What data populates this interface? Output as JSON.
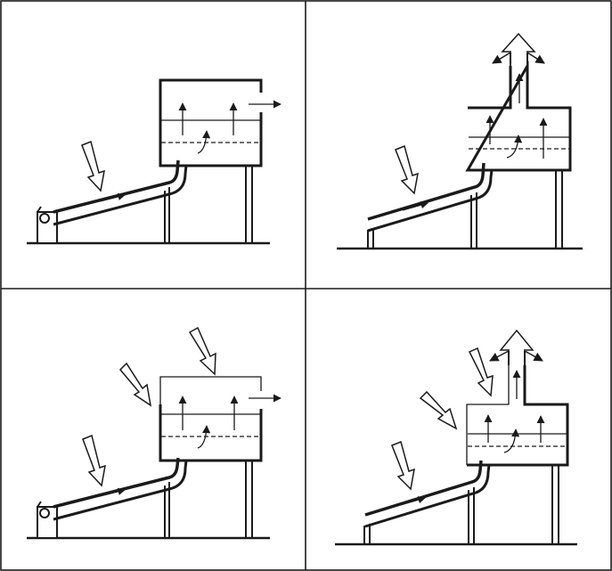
{
  "figure": {
    "layout": "2x2 grid",
    "stroke_color": "#1a1a1a",
    "background_color": "#ffffff",
    "panels": [
      {
        "id": "top-left",
        "elements": [
          "ground-line",
          "pump-icon",
          "sloped-collector-pipe",
          "solar-ray-arrow",
          "support-legs",
          "chamber",
          "liquid-level-line",
          "dashed-liquid-level-line",
          "upward-vapor-arrows",
          "side-outlet-arrow"
        ]
      },
      {
        "id": "top-right",
        "elements": [
          "ground-line",
          "sloped-collector-pipe",
          "solar-ray-arrow",
          "support-legs",
          "chamber",
          "liquid-level-line",
          "dashed-liquid-level-line",
          "upward-vapor-arrows",
          "top-chimney",
          "spreading-outlet-arrows"
        ]
      },
      {
        "id": "bottom-left",
        "elements": [
          "ground-line",
          "pump-icon",
          "sloped-collector-pipe",
          "solar-ray-arrow",
          "support-legs",
          "chamber-thin-top",
          "chamber-ray-arrows",
          "liquid-level-line",
          "dashed-liquid-level-line",
          "upward-vapor-arrows",
          "side-outlet-arrow"
        ]
      },
      {
        "id": "bottom-right",
        "elements": [
          "ground-line",
          "sloped-collector-pipe",
          "solar-ray-arrow",
          "support-legs",
          "chamber-thin-left",
          "chamber-ray-arrows",
          "liquid-level-line",
          "dashed-liquid-level-line",
          "upward-vapor-arrows",
          "top-chimney",
          "spreading-outlet-arrows"
        ]
      }
    ]
  }
}
